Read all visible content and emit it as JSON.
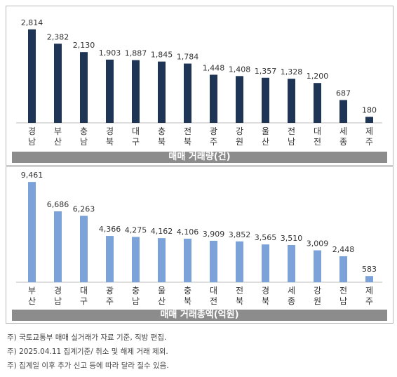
{
  "colors": {
    "dark": "#1f3556",
    "light": "#7ba3d9",
    "caption_bg": "#8c8c8c"
  },
  "chart_data": [
    {
      "type": "bar",
      "title": "매매 거래량(건)",
      "categories": [
        "경남",
        "부산",
        "충남",
        "경북",
        "대구",
        "충북",
        "전북",
        "광주",
        "강원",
        "울산",
        "전남",
        "대전",
        "세종",
        "제주"
      ],
      "values": [
        2814,
        2382,
        2130,
        1903,
        1887,
        1845,
        1784,
        1448,
        1408,
        1357,
        1328,
        1200,
        687,
        180
      ],
      "labels": [
        "2,814",
        "2,382",
        "2,130",
        "1,903",
        "1,887",
        "1,845",
        "1,784",
        "1,448",
        "1,408",
        "1,357",
        "1,328",
        "1,200",
        "687",
        "180"
      ],
      "color": "#1f3556",
      "ylim": [
        0,
        3000
      ]
    },
    {
      "type": "bar",
      "title": "매매 거래총액(억원)",
      "categories": [
        "부산",
        "경남",
        "대구",
        "광주",
        "충남",
        "울산",
        "충북",
        "대전",
        "전북",
        "경북",
        "세종",
        "강원",
        "전남",
        "제주"
      ],
      "values": [
        9461,
        6686,
        6263,
        4366,
        4275,
        4162,
        4106,
        3909,
        3852,
        3565,
        3510,
        3009,
        2448,
        583
      ],
      "labels": [
        "9,461",
        "6,686",
        "6,263",
        "4,366",
        "4,275",
        "4,162",
        "4,106",
        "3,909",
        "3,852",
        "3,565",
        "3,510",
        "3,009",
        "2,448",
        "583"
      ],
      "color": "#7ba3d9",
      "ylim": [
        0,
        10000
      ]
    }
  ],
  "notes": [
    "주) 국토교통부 매매 실거래가 자료 기준, 직방 편집.",
    "주) 2025.04.11 집계기준/ 취소 및 해제 거래 제외.",
    "주) 집계일 이후 추가 신고 등에 따라 달라 질수 있음."
  ]
}
